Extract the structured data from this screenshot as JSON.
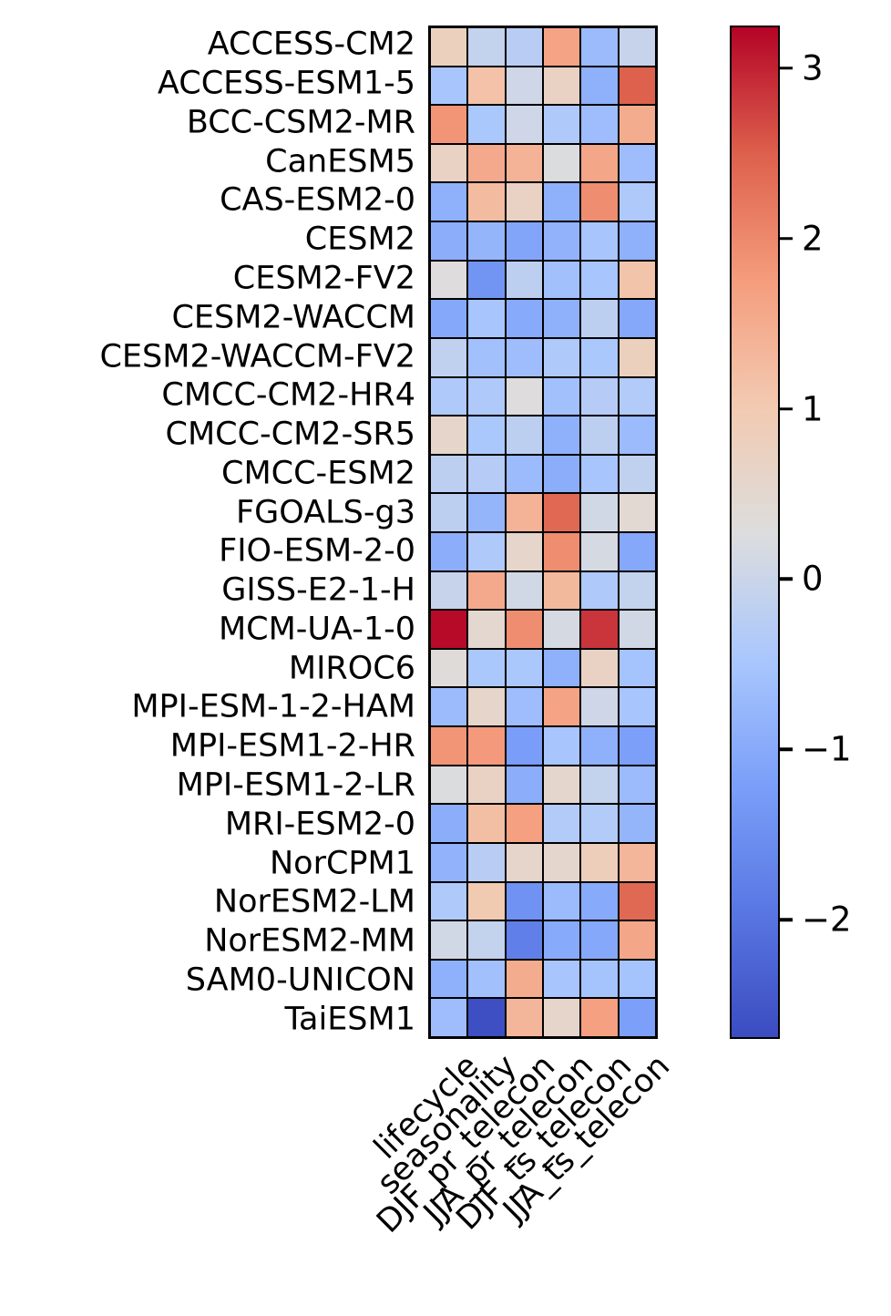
{
  "chart_data": {
    "type": "heatmap",
    "title": "",
    "xlabel": "",
    "ylabel": "",
    "rows": [
      "ACCESS-CM2",
      "ACCESS-ESM1-5",
      "BCC-CSM2-MR",
      "CanESM5",
      "CAS-ESM2-0",
      "CESM2",
      "CESM2-FV2",
      "CESM2-WACCM",
      "CESM2-WACCM-FV2",
      "CMCC-CM2-HR4",
      "CMCC-CM2-SR5",
      "CMCC-ESM2",
      "FGOALS-g3",
      "FIO-ESM-2-0",
      "GISS-E2-1-H",
      "MCM-UA-1-0",
      "MIROC6",
      "MPI-ESM-1-2-HAM",
      "MPI-ESM1-2-HR",
      "MPI-ESM1-2-LR",
      "MRI-ESM2-0",
      "NorCPM1",
      "NorESM2-LM",
      "NorESM2-MM",
      "SAM0-UNICON",
      "TaiESM1"
    ],
    "columns": [
      "lifecycle",
      "seasonality",
      "DJF_pr_telecon",
      "JJA_pr_telecon",
      "DJF_ts_telecon",
      "JJA_ts_telecon"
    ],
    "values": [
      [
        0.8,
        -0.1,
        -0.25,
        1.65,
        -0.7,
        -0.05
      ],
      [
        -0.5,
        1.15,
        0.05,
        0.7,
        -0.9,
        2.5
      ],
      [
        1.85,
        -0.45,
        0.05,
        -0.4,
        -0.65,
        1.5
      ],
      [
        0.7,
        1.55,
        1.4,
        0.25,
        1.6,
        -0.65
      ],
      [
        -0.9,
        1.25,
        0.7,
        -0.9,
        1.95,
        -0.4
      ],
      [
        -0.95,
        -0.8,
        -1.1,
        -0.85,
        -0.5,
        -0.9
      ],
      [
        0.3,
        -1.4,
        -0.2,
        -0.6,
        -0.5,
        1.1
      ],
      [
        -1.05,
        -0.5,
        -1.0,
        -0.9,
        -0.2,
        -1.05
      ],
      [
        -0.15,
        -0.6,
        -0.65,
        -0.4,
        -0.45,
        0.8
      ],
      [
        -0.4,
        -0.4,
        0.3,
        -0.6,
        -0.3,
        -0.35
      ],
      [
        0.6,
        -0.45,
        -0.2,
        -0.9,
        -0.2,
        -0.7
      ],
      [
        -0.2,
        -0.3,
        -0.7,
        -0.95,
        -0.5,
        -0.15
      ],
      [
        -0.2,
        -0.8,
        1.4,
        2.4,
        0.1,
        0.45
      ],
      [
        -0.95,
        -0.4,
        0.6,
        1.95,
        0.15,
        -1.05
      ],
      [
        -0.05,
        1.55,
        0.1,
        1.3,
        -0.4,
        -0.1
      ],
      [
        3.2,
        0.5,
        1.95,
        0.15,
        2.85,
        0.1
      ],
      [
        0.35,
        -0.45,
        -0.45,
        -0.9,
        0.7,
        -0.55
      ],
      [
        -0.7,
        0.6,
        -0.65,
        1.65,
        0.05,
        -0.5
      ],
      [
        1.85,
        1.8,
        -1.25,
        -0.5,
        -0.9,
        -1.2
      ],
      [
        0.25,
        0.7,
        -0.95,
        0.55,
        -0.1,
        -0.7
      ],
      [
        -0.95,
        1.2,
        1.7,
        -0.35,
        -0.35,
        -0.8
      ],
      [
        -0.85,
        -0.25,
        0.6,
        0.55,
        0.85,
        1.35
      ],
      [
        -0.4,
        1.0,
        -1.45,
        -0.7,
        -1.0,
        2.4
      ],
      [
        0.1,
        -0.1,
        -1.8,
        -1.0,
        -1.05,
        1.6
      ],
      [
        -0.9,
        -0.6,
        1.5,
        -0.5,
        -0.55,
        -0.55
      ],
      [
        -0.65,
        -2.65,
        1.35,
        0.6,
        1.7,
        -1.2
      ]
    ],
    "vmin": -2.7,
    "vmax": 3.25,
    "colormap": "coolwarm",
    "grid": true,
    "legend_position": "right-colorbar",
    "colorbar_ticks": [
      3,
      2,
      1,
      0,
      -1,
      -2
    ],
    "colorbar_tick_labels": [
      "3",
      "2",
      "1",
      "0",
      "−1",
      "−2"
    ]
  },
  "colors": {
    "background": "#ffffff",
    "cell_border": "#000000",
    "text": "#000000",
    "coolwarm_stops": [
      "#3b4cc0",
      "#5977e3",
      "#7b9ff9",
      "#aac7fd",
      "#dddddd",
      "#f2cab1",
      "#f59c7d",
      "#dd604d",
      "#b40426"
    ]
  }
}
